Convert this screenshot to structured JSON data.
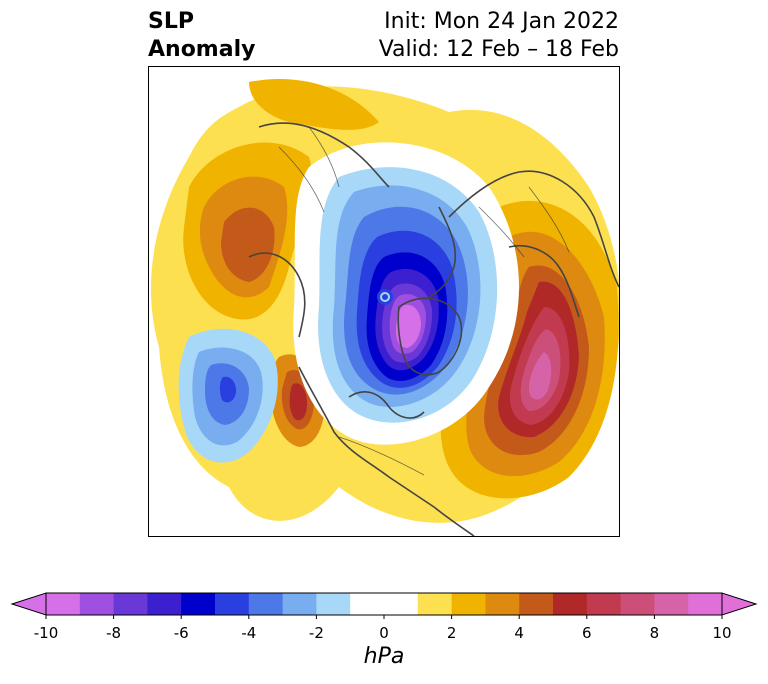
{
  "title": {
    "left_line1": "SLP",
    "left_line2": "Anomaly",
    "init": "Init: Mon 24 Jan 2022",
    "valid": "Valid: 12 Feb – 18 Feb"
  },
  "colorbar": {
    "label": "hPa",
    "ticks": [
      "-10",
      "-8",
      "-6",
      "-4",
      "-2",
      "0",
      "2",
      "4",
      "6",
      "8",
      "10"
    ],
    "min": -10,
    "max": 10,
    "extend": "both",
    "colors": [
      "#d670e8",
      "#a050e0",
      "#6b38d8",
      "#3c20d0",
      "#0000cc",
      "#2a3fe0",
      "#4d78e8",
      "#78aef0",
      "#a8d8f8",
      "#ffffff",
      "#ffffff",
      "#fde050",
      "#f0b400",
      "#de8a10",
      "#c45a1a",
      "#b02828",
      "#c23a50",
      "#cc4f7a",
      "#d662a8",
      "#e070d8"
    ]
  },
  "map": {
    "projection": "north-polar-stereographic",
    "features": [
      "negative anomaly centered over the Arctic / Greenland",
      "positive anomaly over the North Atlantic",
      "positive anomaly over western Russia",
      "positive anomaly over the Alaska / Bering region",
      "negative anomaly over the North Pacific"
    ]
  }
}
